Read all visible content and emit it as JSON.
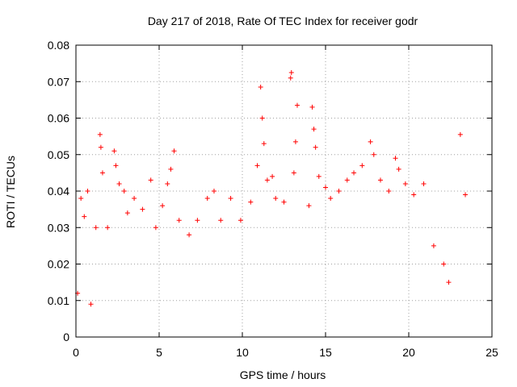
{
  "chart_data": {
    "type": "scatter",
    "title": "Day 217 of 2018, Rate Of TEC Index for receiver godr",
    "xlabel": "GPS time / hours",
    "ylabel": "ROTI / TECUs",
    "xlim": [
      0,
      25
    ],
    "ylim": [
      0,
      0.08
    ],
    "xticks": [
      "0",
      "5",
      "10",
      "15",
      "20",
      "25"
    ],
    "yticks": [
      "0",
      "0.01",
      "0.02",
      "0.03",
      "0.04",
      "0.05",
      "0.06",
      "0.07",
      "0.08"
    ],
    "grid": true,
    "marker": "+",
    "color": "#ff0000",
    "series": [
      {
        "name": "ROTI",
        "points": [
          [
            0.1,
            0.012
          ],
          [
            0.3,
            0.038
          ],
          [
            0.5,
            0.033
          ],
          [
            0.7,
            0.04
          ],
          [
            0.9,
            0.009
          ],
          [
            1.2,
            0.03
          ],
          [
            1.45,
            0.0555
          ],
          [
            1.5,
            0.052
          ],
          [
            1.6,
            0.045
          ],
          [
            1.9,
            0.03
          ],
          [
            2.3,
            0.051
          ],
          [
            2.4,
            0.047
          ],
          [
            2.6,
            0.042
          ],
          [
            2.9,
            0.04
          ],
          [
            3.1,
            0.034
          ],
          [
            3.5,
            0.038
          ],
          [
            4.0,
            0.035
          ],
          [
            4.5,
            0.043
          ],
          [
            4.8,
            0.03
          ],
          [
            5.2,
            0.036
          ],
          [
            5.5,
            0.042
          ],
          [
            5.7,
            0.046
          ],
          [
            5.9,
            0.051
          ],
          [
            6.2,
            0.032
          ],
          [
            6.8,
            0.028
          ],
          [
            7.3,
            0.032
          ],
          [
            7.9,
            0.038
          ],
          [
            8.3,
            0.04
          ],
          [
            8.7,
            0.032
          ],
          [
            9.3,
            0.038
          ],
          [
            9.9,
            0.032
          ],
          [
            10.5,
            0.037
          ],
          [
            10.9,
            0.047
          ],
          [
            11.1,
            0.0685
          ],
          [
            11.2,
            0.06
          ],
          [
            11.3,
            0.053
          ],
          [
            11.5,
            0.043
          ],
          [
            11.8,
            0.044
          ],
          [
            12.0,
            0.038
          ],
          [
            12.5,
            0.037
          ],
          [
            12.9,
            0.071
          ],
          [
            12.95,
            0.0725
          ],
          [
            13.1,
            0.045
          ],
          [
            13.2,
            0.0535
          ],
          [
            13.3,
            0.0635
          ],
          [
            14.0,
            0.036
          ],
          [
            14.2,
            0.063
          ],
          [
            14.3,
            0.057
          ],
          [
            14.4,
            0.052
          ],
          [
            14.6,
            0.044
          ],
          [
            15.0,
            0.041
          ],
          [
            15.3,
            0.038
          ],
          [
            15.8,
            0.04
          ],
          [
            16.3,
            0.043
          ],
          [
            16.7,
            0.045
          ],
          [
            17.2,
            0.047
          ],
          [
            17.7,
            0.0535
          ],
          [
            17.9,
            0.05
          ],
          [
            18.3,
            0.043
          ],
          [
            18.8,
            0.04
          ],
          [
            19.2,
            0.049
          ],
          [
            19.4,
            0.046
          ],
          [
            19.8,
            0.042
          ],
          [
            20.3,
            0.039
          ],
          [
            20.9,
            0.042
          ],
          [
            21.5,
            0.025
          ],
          [
            22.1,
            0.02
          ],
          [
            22.4,
            0.015
          ],
          [
            23.1,
            0.0555
          ],
          [
            23.4,
            0.039
          ]
        ]
      }
    ]
  }
}
